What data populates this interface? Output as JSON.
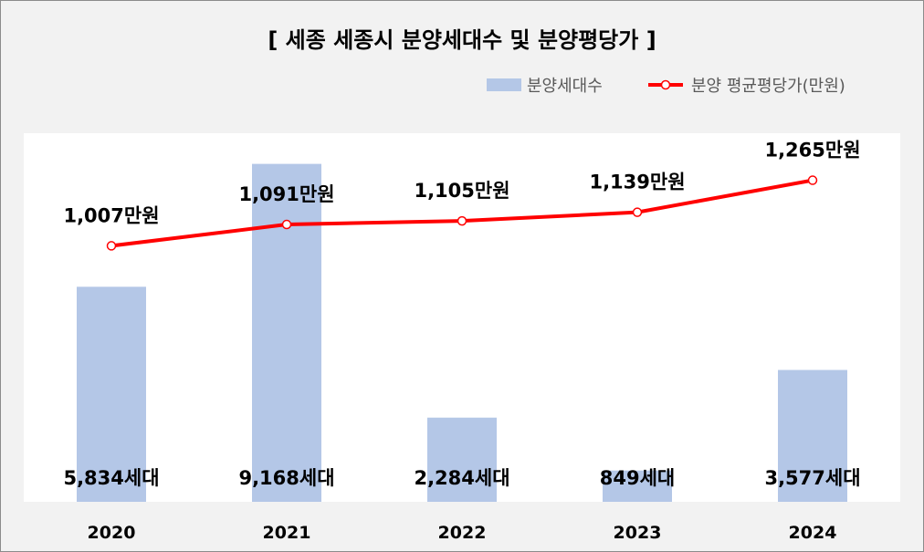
{
  "chart_data": {
    "type": "bar+line",
    "title": "[ 세종 세종시 분양세대수 및 분양평당가 ]",
    "categories": [
      "2020",
      "2021",
      "2022",
      "2023",
      "2024"
    ],
    "series": [
      {
        "name": "분양세대수",
        "type": "bar",
        "color": "#b4c7e7",
        "values": [
          5834,
          9168,
          2284,
          849,
          3577
        ],
        "labels": [
          "5,834세대",
          "9,168세대",
          "2,284세대",
          "849세대",
          "3,577세대"
        ]
      },
      {
        "name": "분양 평균평당가(만원)",
        "type": "line",
        "color": "#ff0000",
        "values": [
          1007,
          1091,
          1105,
          1139,
          1265
        ],
        "labels": [
          "1,007만원",
          "1,091만원",
          "1,105만원",
          "1,139만원",
          "1,265만원"
        ]
      }
    ],
    "bar_axis_max": 10000,
    "line_axis_range": [
      0,
      1450
    ],
    "legend_position": "top-right",
    "grid": false
  }
}
